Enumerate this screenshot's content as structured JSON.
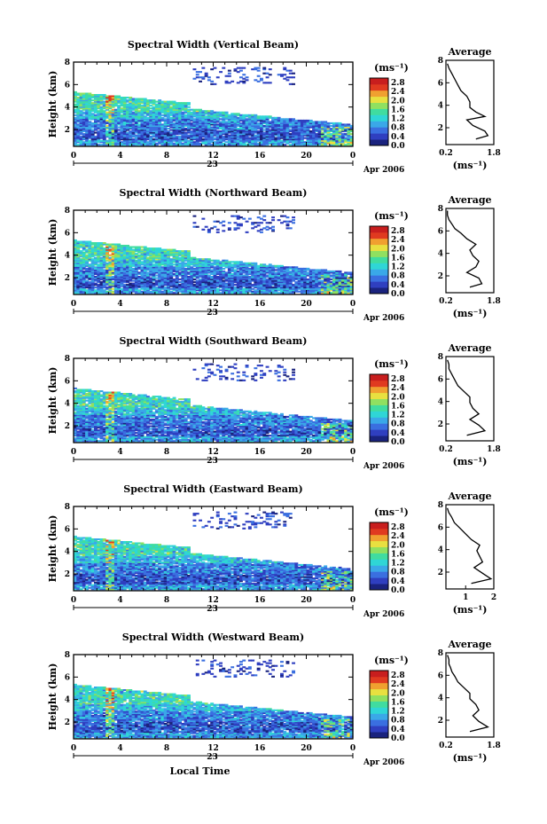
{
  "shared": {
    "date_label": "Apr 2006",
    "day_label": "23",
    "unit_label": "(ms⁻¹)",
    "y_label": "Height (km)",
    "x_label": "Local Time",
    "avg_title": "Average",
    "avg_unit": "(ms⁻¹)"
  },
  "chart_data": [
    {
      "type": "heatmap",
      "title": "Spectral Width (Vertical Beam)",
      "xlabel": "",
      "ylabel": "Height (km)",
      "xticks": [
        "0",
        "4",
        "8",
        "12",
        "16",
        "20",
        "0"
      ],
      "yticks": [
        "2",
        "4",
        "6",
        "8"
      ],
      "xlim": [
        0,
        24
      ],
      "ylim": [
        0.5,
        8
      ],
      "colorbar": {
        "label": "(ms⁻¹)",
        "ticks": [
          "0.0",
          "0.4",
          "0.8",
          "1.2",
          "1.6",
          "2.0",
          "2.4",
          "2.8"
        ],
        "range": [
          0,
          3.0
        ]
      },
      "colors": [
        "#1a237e",
        "#2f3fc0",
        "#3a6fe0",
        "#3aa8e8",
        "#2fd6d6",
        "#40dca0",
        "#90e060",
        "#e8e040",
        "#f0a030",
        "#e03a20",
        "#c81e1e"
      ],
      "profile": {
        "title": "Average",
        "xticks": [
          "0.2",
          "1.8"
        ],
        "xlim": [
          0.2,
          1.8
        ],
        "ylim": [
          0.5,
          8
        ],
        "yticks": [
          "2",
          "4",
          "6",
          "8"
        ],
        "x": [
          1.2,
          1.6,
          1.5,
          1.1,
          0.9,
          1.5,
          1.2,
          1.0,
          1.0,
          0.9,
          0.7,
          0.6,
          0.5,
          0.4,
          0.3,
          0.25
        ],
        "y": [
          1.0,
          1.3,
          1.7,
          2.2,
          2.7,
          3.0,
          3.4,
          3.8,
          4.3,
          4.8,
          5.3,
          5.8,
          6.3,
          6.8,
          7.3,
          7.7
        ]
      }
    },
    {
      "type": "heatmap",
      "title": "Spectral Width (Northward Beam)",
      "xlabel": "",
      "ylabel": "Height (km)",
      "xticks": [
        "0",
        "4",
        "8",
        "12",
        "16",
        "20",
        "0"
      ],
      "yticks": [
        "2",
        "4",
        "6",
        "8"
      ],
      "xlim": [
        0,
        24
      ],
      "ylim": [
        0.5,
        8
      ],
      "colorbar": {
        "label": "(ms⁻¹)",
        "ticks": [
          "0.0",
          "0.4",
          "0.8",
          "1.2",
          "1.6",
          "2.0",
          "2.4",
          "2.8"
        ],
        "range": [
          0,
          3.0
        ]
      },
      "profile": {
        "title": "Average",
        "xticks": [
          "0.2",
          "1.8"
        ],
        "xlim": [
          0.2,
          1.8
        ],
        "ylim": [
          0.5,
          8
        ],
        "yticks": [
          "2",
          "4",
          "6",
          "8"
        ],
        "x": [
          1.0,
          1.4,
          1.3,
          0.9,
          1.2,
          1.3,
          1.1,
          1.0,
          1.2,
          0.9,
          0.7,
          0.5,
          0.4,
          0.3,
          0.25,
          0.25
        ],
        "y": [
          1.0,
          1.3,
          1.8,
          2.3,
          2.8,
          3.3,
          3.8,
          4.3,
          4.8,
          5.3,
          5.8,
          6.2,
          6.6,
          7.0,
          7.4,
          7.8
        ]
      }
    },
    {
      "type": "heatmap",
      "title": "Spectral Width (Southward Beam)",
      "xlabel": "",
      "ylabel": "Height (km)",
      "xticks": [
        "0",
        "4",
        "8",
        "12",
        "16",
        "20",
        "0"
      ],
      "yticks": [
        "2",
        "4",
        "6",
        "8"
      ],
      "xlim": [
        0,
        24
      ],
      "ylim": [
        0.5,
        8
      ],
      "colorbar": {
        "label": "(ms⁻¹)",
        "ticks": [
          "0.0",
          "0.4",
          "0.8",
          "1.2",
          "1.6",
          "2.0",
          "2.4",
          "2.8"
        ],
        "range": [
          0,
          3.0
        ]
      },
      "profile": {
        "title": "Average",
        "xticks": [
          "0.2",
          "1.8"
        ],
        "xlim": [
          0.2,
          1.8
        ],
        "ylim": [
          0.5,
          8
        ],
        "yticks": [
          "2",
          "4",
          "6",
          "8"
        ],
        "x": [
          0.9,
          1.5,
          1.3,
          1.0,
          1.3,
          1.1,
          1.0,
          1.0,
          0.8,
          0.6,
          0.5,
          0.4,
          0.3,
          0.3,
          0.25
        ],
        "y": [
          1.0,
          1.4,
          1.9,
          2.4,
          2.9,
          3.4,
          3.9,
          4.4,
          4.9,
          5.4,
          5.9,
          6.4,
          6.9,
          7.3,
          7.7
        ]
      }
    },
    {
      "type": "heatmap",
      "title": "Spectral Width (Eastward Beam)",
      "xlabel": "",
      "ylabel": "Height (km)",
      "xticks": [
        "0",
        "4",
        "8",
        "12",
        "16",
        "20",
        "0"
      ],
      "yticks": [
        "2",
        "4",
        "6",
        "8"
      ],
      "xlim": [
        0,
        24
      ],
      "ylim": [
        0.5,
        8
      ],
      "colorbar": {
        "label": "(ms⁻¹)",
        "ticks": [
          "0.0",
          "0.4",
          "0.8",
          "1.2",
          "1.6",
          "2.0",
          "2.4",
          "2.8"
        ],
        "range": [
          0,
          3.0
        ]
      },
      "profile": {
        "title": "Average",
        "xticks": [
          "1",
          "2"
        ],
        "xlim": [
          0.3,
          2.0
        ],
        "ylim": [
          0.5,
          8
        ],
        "yticks": [
          "2",
          "4",
          "6",
          "8"
        ],
        "x": [
          1.2,
          1.9,
          1.6,
          1.3,
          1.6,
          1.5,
          1.4,
          1.5,
          1.2,
          1.0,
          0.8,
          0.6,
          0.5,
          0.4,
          0.35
        ],
        "y": [
          1.0,
          1.4,
          1.9,
          2.4,
          2.9,
          3.4,
          3.9,
          4.4,
          4.9,
          5.4,
          5.9,
          6.4,
          6.9,
          7.3,
          7.7
        ]
      }
    },
    {
      "type": "heatmap",
      "title": "Spectral Width (Westward Beam)",
      "xlabel": "Local Time",
      "ylabel": "Height (km)",
      "xticks": [
        "0",
        "4",
        "8",
        "12",
        "16",
        "20",
        "0"
      ],
      "yticks": [
        "2",
        "4",
        "6",
        "8"
      ],
      "xlim": [
        0,
        24
      ],
      "ylim": [
        0.5,
        8
      ],
      "colorbar": {
        "label": "(ms⁻¹)",
        "ticks": [
          "0.0",
          "0.4",
          "0.8",
          "1.2",
          "1.6",
          "2.0",
          "2.4",
          "2.8"
        ],
        "range": [
          0,
          3.0
        ]
      },
      "profile": {
        "title": "Average",
        "xticks": [
          "0.2",
          "1.8"
        ],
        "xlim": [
          0.2,
          1.8
        ],
        "ylim": [
          0.5,
          8
        ],
        "yticks": [
          "2",
          "4",
          "6",
          "8"
        ],
        "x": [
          1.0,
          1.6,
          1.3,
          1.1,
          1.3,
          1.2,
          1.0,
          1.0,
          0.8,
          0.6,
          0.5,
          0.4,
          0.35,
          0.3,
          0.3,
          0.25
        ],
        "y": [
          1.0,
          1.4,
          1.9,
          2.4,
          2.9,
          3.4,
          3.9,
          4.4,
          4.9,
          5.4,
          5.9,
          6.3,
          6.7,
          7.0,
          7.4,
          7.8
        ]
      }
    }
  ]
}
